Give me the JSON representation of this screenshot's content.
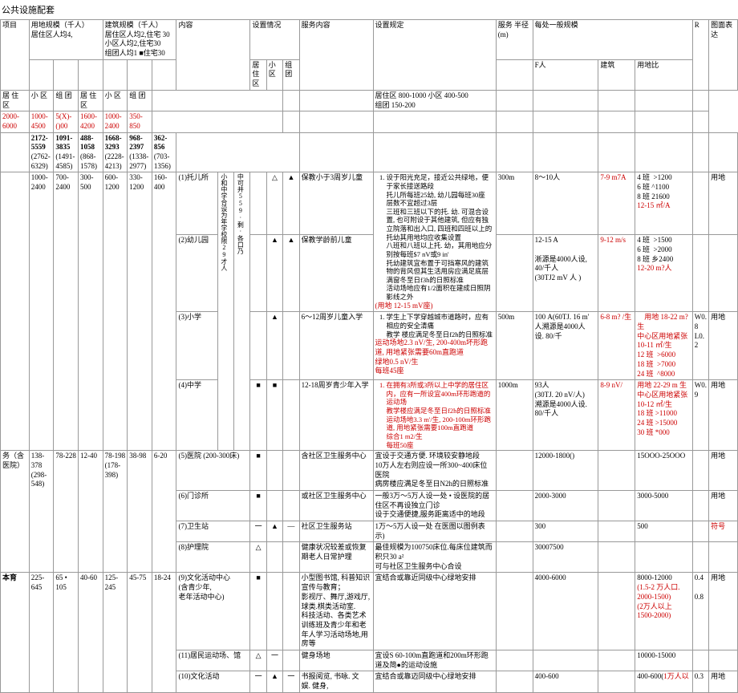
{
  "title": "公共设施配套",
  "headers": {
    "c1": "项目",
    "c2": "用地规模（千人）",
    "c2sub": "居住区人均4,",
    "c3": "建筑规模（千人）",
    "c3sub": "居住区人均2,住宅 30\n小区人均2,住宅30\n组团人均1 ■住宅30",
    "c4": "内容",
    "c5": "设置情况",
    "c6": "服务内容",
    "c7": "设置规定",
    "c8": "服务 半径(m)",
    "c9": "每处一般规模",
    "c9a": "F人",
    "c9b": "建筑",
    "c9c": "用地比",
    "cR": "R",
    "c10": "图面表达",
    "sub_jzq": "居 住 区",
    "sub_xq": "小 区",
    "sub_zt": "组 团",
    "sub_s1": "居住区",
    "sub_s2": "小区",
    "sub_s3": "组团"
  },
  "land_scale": {
    "jzq": "2000-6000",
    "xq": "1000-4500",
    "zt": "5(X)-()00",
    "b_jzq": "1600-4200",
    "b_xq": "1000-2400",
    "b_zt": "350-850"
  },
  "land_scale2": {
    "jzq": "2172-5559",
    "jzq2": "(2762-6329)",
    "xq": "1091-3835",
    "xq2": "(1491-4585)",
    "zt": "488-1058",
    "zt2": "(868-1578)",
    "b_jzq": "1668-3293",
    "b_jzq2": "(2228-4213)",
    "b_xq": "968-2397",
    "b_xq2": "(1338-2977)",
    "b_zt": "362-856",
    "b_zt2": "(703-1356)"
  },
  "service_radius": {
    "jzq": "居住区 800-1000 小区 400-500\n组团 150-200"
  },
  "row_edu": {
    "l1": "1000-2400",
    "l2": "700-2400",
    "l3": "300-500",
    "l4": "600-1200",
    "l5": "330-1200",
    "l6": "160-400",
    "vtext": "小和中学合设为年学校限29才人",
    "vtext2": "中可并559·剩·各口乃",
    "tuo": {
      "name": "(1)托儿所",
      "s1": "△",
      "s2": "▲",
      "svc": "保教小于3周岁儿童",
      "rules": "设于阳光充足，接近公共绿地，便于家长接送路段\n托儿所每班25幼, 幼儿园每班30座\n层数不宜超过3层\n三班和三班以下的托. 幼. 可混合设置, 也可附设于其他建筑, 但应有独立院落和出入口, 四班和四班以上的托幼其用地均应收集设置\n八班和八班以上托. 幼，其用地应分别按每班$7 nV或9 in'\n托幼建筑宜布置于可挡寒风的建筑物的背风但其生活用房应满足底层满窗冬至日f3h的日照标准\n活动场地应有1/2面积在建成日照阴影线之外",
      "rules_red": "(用地 12-15 mV座)",
      "radius": "300m",
      "ppl": "8～10人",
      "bldg": "7-9 m7A",
      "land": "4 班  >1200\n6 班 ^1100\n8 班 21600",
      "land_red": "12-15 ㎡/A",
      "r": "",
      "note": "用地"
    },
    "you": {
      "name": "(2)幼儿园",
      "s1": "▲",
      "s2": "▲",
      "svc": "保教学龄前儿童",
      "radius": "",
      "ppl": "12-15 A\n\n淅源是4000人设,\n40/千人\n(30TJ2 mV 人 )",
      "bldg": "9-12 m/s",
      "land": "4 班  >1500\n6 班  >2000\n8 班 乡2400",
      "land_red": "12-20 m?人"
    },
    "xiao": {
      "name": "(3)小学",
      "s1": "▲",
      "svc": "6～12周岁儿童入学",
      "rules": "学生上下学穿越城市道路时，应有相应的安全清痛\n教学  楼应满足冬至日f2h的日照标准",
      "rules_red": "运动场地2.3 nV/生, 200-400m坏形跑道, 用地紧张需要60m直跑道\n绿地0.5 nV/生\n每班45座",
      "radius": "500m",
      "ppl": "100 A(60TJ. 16 m'\n人溯源是4000人设. 80/千",
      "bldg": "6-8 m? /生",
      "land": "    用地 18-22 m?生\n中心区用地紧张\n10-11 ㎡/生\n12 班  >6000\n18 班  >7000\n24 班  ^8000",
      "r1": "W0.8",
      "r2": "L0.2",
      "note": "用地"
    },
    "zhong": {
      "name": "(4)中学",
      "s1": "■",
      "s2": "■",
      "svc": "12-18周岁青少年入学",
      "rules_red": "在拥有3所或3所以上中学的居住区内，应有一所设宜400m环形跑道的运动场\n教学楼应满足冬至日f2h的日照标准\n运动场地3.3 m'/生, 200-100m环形跑道, 用地紧张需要100m直跑道\n综合1 m2/生\n每班50座",
      "radius": "1000m",
      "ppl": "93人\n(30TJ. 20 nV/人)\n溯源是4000人设.\n80/千人",
      "bldg": "8-9 nV/",
      "land": "用地 22-29 m 生\n中心区用地紧张\n10-12 ㎡/生\n18 班 >11000\n24 班 >15000\n30 班 *000",
      "r1": "W0.9",
      "note": "用地"
    }
  },
  "row_med": {
    "label": "务（含医院）",
    "l1": "138-378",
    "l1b": "(298-548)",
    "l2": "78-228",
    "l3": "12-40",
    "l4": "78-198",
    "l4b": "(178-398)",
    "l5": "38-98",
    "l6": "6-20",
    "yy": {
      "name": "(5)医院 (200-300床)",
      "s1": "■",
      "svc": "含社区卫生服务中心",
      "rules": "宜设于交通方便. 环境较安静地段\n10万人左右则应设一所300~400床位医院\n病房楼应满足冬至日N2h的日照标准",
      "ppl": "12000-1800()",
      "land": "15OOO-25OOO",
      "note": "用地"
    },
    "mz": {
      "name": "(6)门诊所",
      "s1": "■",
      "svc": "或社区卫生服务中心",
      "rules": "一般3万〜5万人设一处 • 设医院的居住区不再设独立门诊\n设于交通便捷,服务距离适中的地段",
      "ppl": "2000-3000",
      "land": "3000-5000",
      "note": "用地"
    },
    "wz": {
      "name": "(7)卫生站",
      "s1": "一",
      "s2": "▲",
      "s3": "—",
      "svc": "社区卫生服务站",
      "rules": "1万〜5万人设一处 在医图以图例表示)",
      "ppl": "300",
      "land": "500",
      "note_red": "符号"
    },
    "hl": {
      "name": "(8)护理院",
      "s1": "△",
      "svc": "健康状况较差或恢复期老人日常护理",
      "rules": "最佳规模为100750床位.每床位建筑而积只30 a²\n可与社区卫生服务中心合设",
      "ppl": "30007500"
    }
  },
  "row_cul": {
    "label": "本育",
    "l1": "225-645",
    "l2": "65 •\n105",
    "l3": "40-60",
    "l4": "125-245",
    "l5": "45-75",
    "l6": "18-24",
    "wh": {
      "name": "(9)文化活动中心\n(含青少年,\n老年活动中心)",
      "s1": "■",
      "svc": "小型图书馆, 科普知识宣传与教育；\n影视厅、舞厅,游戏厅,球类.棋类活动室.\n科技活动、各类艺术训练班及青少年和老年人学习活动场地,用房等",
      "rules": "宜结合或靠近同级中心绿地安排",
      "ppl": "4000-6000",
      "land": "8000-12000",
      "land_red": "(1.5-2 万人口.\n2000-1500)\n(2万人以上\n1500-2000)",
      "r": "0.4\n\n0.8",
      "note": "用地"
    },
    "jm": {
      "name": "(11)居民运动场、馆",
      "s1": "△",
      "s2": "一",
      "svc": "健身场地",
      "rules": "宜设S 60-100m直跑道和200m环形跑道及简●的运动设施",
      "ppl": "",
      "land": "10000-15000"
    },
    "whhd": {
      "name": "(10)文化活动",
      "s1": "一",
      "s2": "▲",
      "s3": "一",
      "svc": "书报阅览, 书咏. 文娱. 健身,",
      "rules": "宜结合或靠迈同级中心绿地安排",
      "ppl": "400-600",
      "land": "400-600(",
      "land_red": "1万人以",
      "r": "0.3",
      "note": "用地"
    }
  }
}
